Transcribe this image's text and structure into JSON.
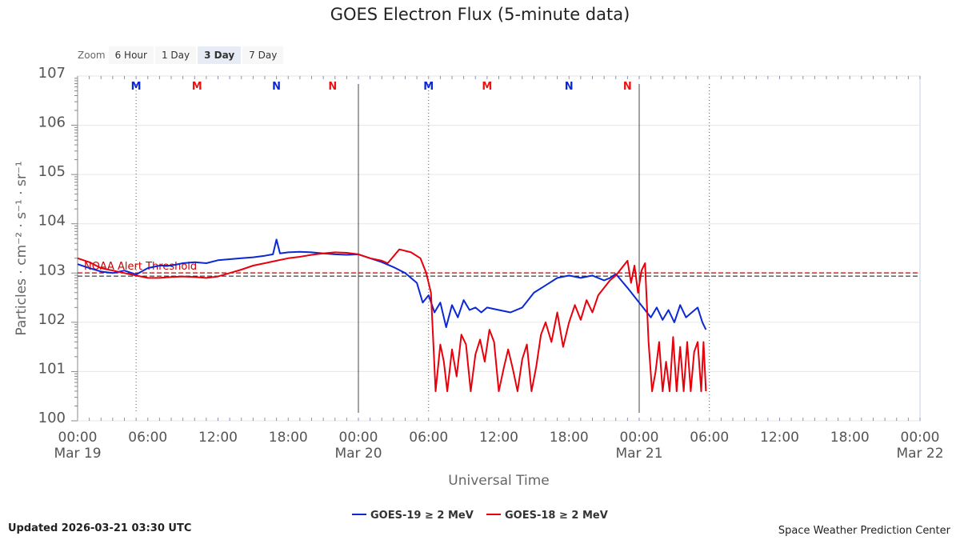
{
  "title": "GOES Electron Flux (5-minute data)",
  "zoom": {
    "label": "Zoom",
    "buttons": [
      {
        "label": "6 Hour",
        "active": false
      },
      {
        "label": "1 Day",
        "active": false
      },
      {
        "label": "3 Day",
        "active": true
      },
      {
        "label": "7 Day",
        "active": false
      }
    ]
  },
  "footer": {
    "updated": "Updated 2026-03-21 03:30 UTC",
    "credit": "Space Weather Prediction Center"
  },
  "chart_data": {
    "type": "line",
    "title": "GOES Electron Flux (5-minute data)",
    "xlabel": "Universal Time",
    "ylabel": "Particles · cm⁻² · s⁻¹ · sr⁻¹",
    "y_scale": "log",
    "ylim_exponent": [
      0,
      7
    ],
    "y_tick_base": "10",
    "y_ticks": [
      0,
      1,
      2,
      3,
      4,
      5,
      6,
      7
    ],
    "xlim_hours": [
      0,
      72
    ],
    "x_ticks": [
      {
        "h": 0,
        "time": "00:00",
        "date": "Mar 19"
      },
      {
        "h": 6,
        "time": "06:00",
        "date": ""
      },
      {
        "h": 12,
        "time": "12:00",
        "date": ""
      },
      {
        "h": 18,
        "time": "18:00",
        "date": ""
      },
      {
        "h": 24,
        "time": "00:00",
        "date": "Mar 20"
      },
      {
        "h": 30,
        "time": "06:00",
        "date": ""
      },
      {
        "h": 36,
        "time": "12:00",
        "date": ""
      },
      {
        "h": 42,
        "time": "18:00",
        "date": ""
      },
      {
        "h": 48,
        "time": "00:00",
        "date": "Mar 21"
      },
      {
        "h": 54,
        "time": "06:00",
        "date": ""
      },
      {
        "h": 60,
        "time": "12:00",
        "date": ""
      },
      {
        "h": 66,
        "time": "18:00",
        "date": ""
      },
      {
        "h": 72,
        "time": "00:00",
        "date": "Mar 22"
      }
    ],
    "threshold": {
      "label": "NOAA Alert Threshold",
      "exponent": 2.97,
      "color": "#cc0000"
    },
    "day_lines_hours": [
      24,
      48
    ],
    "event_lines_hours": [
      5.0,
      30.0,
      54.0
    ],
    "markers": [
      {
        "label": "M",
        "h": 5.0,
        "color": "#0b28d4"
      },
      {
        "label": "M",
        "h": 10.2,
        "color": "#ee1111"
      },
      {
        "label": "N",
        "h": 17.0,
        "color": "#0b28d4"
      },
      {
        "label": "N",
        "h": 21.8,
        "color": "#ee1111"
      },
      {
        "label": "M",
        "h": 30.0,
        "color": "#0b28d4"
      },
      {
        "label": "M",
        "h": 35.0,
        "color": "#ee1111"
      },
      {
        "label": "N",
        "h": 42.0,
        "color": "#0b28d4"
      },
      {
        "label": "N",
        "h": 47.0,
        "color": "#ee1111"
      }
    ],
    "legend_position": "bottom-center",
    "series": [
      {
        "name": "GOES-19 ≥ 2 MeV",
        "color": "#0b28d4",
        "x": [
          0,
          1,
          2,
          3,
          4,
          5,
          6,
          7,
          8,
          9,
          10,
          11,
          12,
          13,
          14,
          15,
          16,
          16.7,
          17.0,
          17.3,
          18,
          19,
          20,
          21,
          22,
          23,
          24,
          25,
          26,
          27,
          28,
          29,
          29.5,
          30,
          30.5,
          31,
          31.5,
          32,
          32.5,
          33,
          33.5,
          34,
          34.5,
          35,
          36,
          37,
          38,
          39,
          40,
          41,
          42,
          43,
          44,
          45,
          45.5,
          46,
          47,
          48,
          48.5,
          49,
          49.5,
          50,
          50.5,
          51,
          51.5,
          52,
          52.5,
          53,
          53.4,
          53.7
        ],
        "y_exp": [
          3.18,
          3.1,
          3.03,
          3.0,
          3.05,
          2.97,
          3.1,
          3.15,
          3.15,
          3.2,
          3.22,
          3.2,
          3.26,
          3.28,
          3.3,
          3.32,
          3.35,
          3.38,
          3.68,
          3.4,
          3.42,
          3.43,
          3.42,
          3.4,
          3.38,
          3.37,
          3.38,
          3.3,
          3.22,
          3.12,
          3.0,
          2.8,
          2.4,
          2.55,
          2.2,
          2.4,
          1.9,
          2.35,
          2.1,
          2.45,
          2.25,
          2.3,
          2.2,
          2.3,
          2.25,
          2.2,
          2.3,
          2.6,
          2.75,
          2.9,
          2.95,
          2.9,
          2.95,
          2.85,
          2.9,
          2.98,
          2.7,
          2.4,
          2.25,
          2.1,
          2.3,
          2.05,
          2.25,
          2.0,
          2.35,
          2.1,
          2.2,
          2.3,
          2.0,
          1.85
        ]
      },
      {
        "name": "GOES-18 ≥ 2 MeV",
        "color": "#e8000b",
        "x": [
          0,
          1,
          2,
          3,
          4,
          5,
          6,
          7,
          8,
          9,
          10,
          11,
          12,
          13,
          14,
          15,
          16,
          17,
          18,
          19,
          20,
          21,
          22,
          23,
          24,
          25,
          26,
          26.5,
          27.5,
          28.5,
          29.3,
          29.8,
          30.2,
          30.6,
          31,
          31.3,
          31.6,
          32,
          32.4,
          32.8,
          33.2,
          33.6,
          34,
          34.4,
          34.8,
          35.2,
          35.6,
          36,
          36.4,
          36.8,
          37.2,
          37.6,
          38,
          38.4,
          38.8,
          39.2,
          39.6,
          40,
          40.5,
          41,
          41.5,
          42,
          42.5,
          43,
          43.5,
          44,
          44.5,
          45,
          45.5,
          46,
          46.5,
          47,
          47.3,
          47.6,
          47.9,
          48.2,
          48.5,
          48.8,
          49.1,
          49.4,
          49.7,
          50,
          50.3,
          50.6,
          50.9,
          51.2,
          51.5,
          51.8,
          52.1,
          52.4,
          52.7,
          53,
          53.3,
          53.5,
          53.7
        ],
        "y_exp": [
          3.3,
          3.22,
          3.1,
          3.05,
          3.0,
          2.95,
          2.9,
          2.9,
          2.92,
          2.93,
          2.92,
          2.9,
          2.93,
          3.0,
          3.07,
          3.15,
          3.2,
          3.25,
          3.3,
          3.33,
          3.37,
          3.4,
          3.42,
          3.41,
          3.38,
          3.3,
          3.25,
          3.2,
          3.48,
          3.42,
          3.3,
          3.0,
          2.6,
          0.6,
          1.55,
          1.2,
          0.6,
          1.45,
          0.9,
          1.75,
          1.55,
          0.6,
          1.35,
          1.65,
          1.2,
          1.85,
          1.6,
          0.6,
          1.05,
          1.45,
          1.05,
          0.6,
          1.25,
          1.55,
          0.6,
          1.1,
          1.75,
          2.0,
          1.6,
          2.2,
          1.5,
          2.0,
          2.35,
          2.05,
          2.45,
          2.2,
          2.55,
          2.7,
          2.85,
          2.95,
          3.1,
          3.25,
          2.8,
          3.15,
          2.6,
          3.05,
          3.2,
          1.6,
          0.6,
          1.0,
          1.6,
          0.6,
          1.2,
          0.6,
          1.7,
          0.6,
          1.5,
          0.6,
          1.6,
          0.6,
          1.4,
          1.6,
          0.6,
          1.6,
          0.6
        ]
      }
    ]
  }
}
